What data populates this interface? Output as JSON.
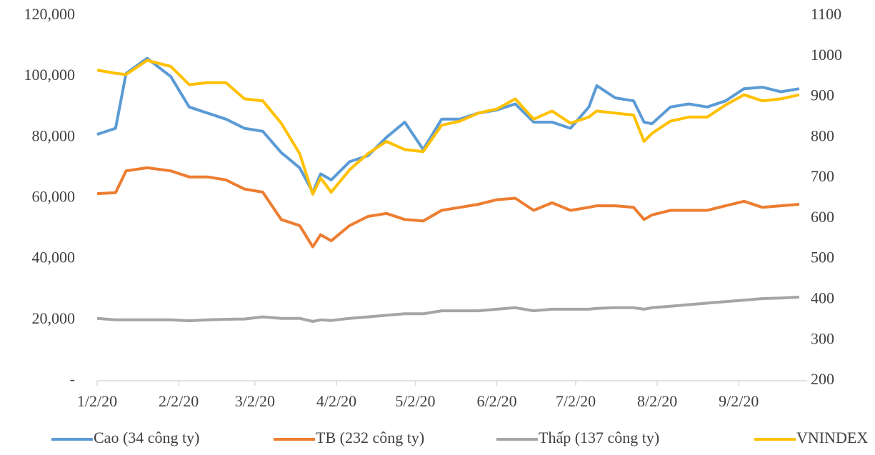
{
  "chart_data": {
    "type": "line",
    "x": [
      "1/2/20",
      "1/9/20",
      "1/13/20",
      "1/21/20",
      "1/30/20",
      "2/6/20",
      "2/13/20",
      "2/20/20",
      "2/27/20",
      "3/5/20",
      "3/12/20",
      "3/19/20",
      "3/24/20",
      "3/27/20",
      "3/31/20",
      "4/7/20",
      "4/14/20",
      "4/21/20",
      "4/28/20",
      "5/5/20",
      "5/12/20",
      "5/19/20",
      "5/26/20",
      "6/2/20",
      "6/9/20",
      "6/16/20",
      "6/23/20",
      "6/30/20",
      "7/7/20",
      "7/10/20",
      "7/17/20",
      "7/24/20",
      "7/28/20",
      "7/31/20",
      "8/7/20",
      "8/14/20",
      "8/21/20",
      "8/28/20",
      "9/4/20",
      "9/11/20",
      "9/18/20",
      "9/25/20"
    ],
    "series": [
      {
        "name": "Cao (34 công ty)",
        "color": "#5b9bd5",
        "values": [
          81000,
          83000,
          101000,
          106000,
          100000,
          90000,
          88000,
          86000,
          83000,
          82000,
          75000,
          70000,
          62000,
          68000,
          66000,
          72000,
          74000,
          80000,
          85000,
          76000,
          86000,
          86000,
          88000,
          89000,
          91000,
          85000,
          85000,
          83000,
          90000,
          97000,
          93000,
          92000,
          85000,
          84500,
          90000,
          91000,
          90000,
          92000,
          96000,
          96500,
          95000,
          96000
        ]
      },
      {
        "name": "TB (232 công ty)",
        "color": "#ed7d31",
        "values": [
          61500,
          61800,
          69000,
          70000,
          69000,
          67000,
          67000,
          66000,
          63000,
          62000,
          53000,
          51000,
          44000,
          48000,
          46000,
          51000,
          54000,
          55000,
          53000,
          52500,
          56000,
          57000,
          58000,
          59500,
          60000,
          56000,
          58500,
          56000,
          57000,
          57500,
          57500,
          57000,
          53000,
          54500,
          56000,
          56000,
          56000,
          57500,
          59000,
          57000,
          57500,
          58000
        ]
      },
      {
        "name": "Thấp (137 công ty)",
        "color": "#a5a5a5",
        "values": [
          20500,
          20000,
          20000,
          20000,
          20000,
          19700,
          20000,
          20200,
          20300,
          21000,
          20500,
          20500,
          19500,
          20000,
          19800,
          20500,
          21000,
          21500,
          22000,
          22000,
          23000,
          23000,
          23000,
          23500,
          24000,
          23000,
          23500,
          23500,
          23500,
          23800,
          24000,
          24000,
          23500,
          24000,
          24500,
          25000,
          25500,
          26000,
          26500,
          27000,
          27200,
          27500
        ]
      },
      {
        "name": "VNINDEX",
        "color": "#ffc000",
        "axis": "y2",
        "values": [
          966,
          958,
          955,
          990,
          975,
          930,
          935,
          935,
          895,
          890,
          835,
          760,
          660,
          700,
          665,
          720,
          760,
          790,
          770,
          765,
          830,
          840,
          860,
          870,
          895,
          845,
          865,
          835,
          850,
          865,
          860,
          855,
          790,
          810,
          840,
          850,
          850,
          880,
          905,
          890,
          895,
          905
        ]
      }
    ],
    "xlim": [
      "1/2/20",
      "9/28/20"
    ],
    "xticks": [
      "1/2/20",
      "2/2/20",
      "3/2/20",
      "4/2/20",
      "5/2/20",
      "6/2/20",
      "7/2/20",
      "8/2/20",
      "9/2/20"
    ],
    "ylim": [
      0,
      120000
    ],
    "yticks": [
      {
        "value": 0,
        "label": "-"
      },
      {
        "value": 20000,
        "label": "20,000"
      },
      {
        "value": 40000,
        "label": "40,000"
      },
      {
        "value": 60000,
        "label": "60,000"
      },
      {
        "value": 80000,
        "label": "80,000"
      },
      {
        "value": 100000,
        "label": "100,000"
      },
      {
        "value": 120000,
        "label": "120,000"
      }
    ],
    "y2lim": [
      200,
      1100
    ],
    "y2ticks": [
      200,
      300,
      400,
      500,
      600,
      700,
      800,
      900,
      1000,
      1100
    ],
    "legend": "bottom"
  }
}
